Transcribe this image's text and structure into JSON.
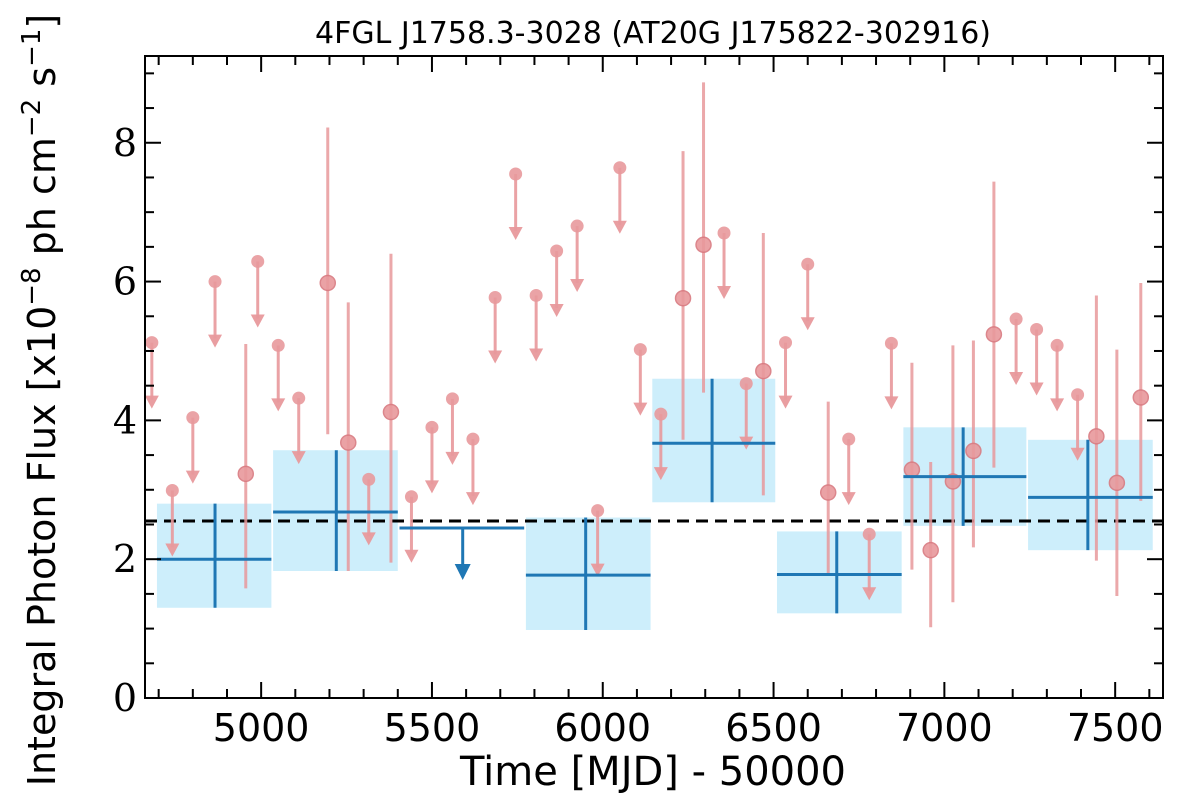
{
  "chart_data": {
    "type": "scatter",
    "title": "4FGL J1758.3-3028 (AT20G J175822-302916)",
    "xlabel": "Time [MJD] - 50000",
    "ylabel": "Integral Photon Flux [x10^-8 ph cm^-2 s^-1]",
    "xlim": [
      4660,
      7640
    ],
    "ylim": [
      0,
      9.25
    ],
    "xticks": [
      5000,
      5500,
      6000,
      6500,
      7000,
      7500
    ],
    "yticks": [
      0,
      2,
      4,
      6,
      8
    ],
    "reference_flux": 2.55,
    "colors": {
      "detections": "#e8999c",
      "bins": "#1f77b4",
      "bin_band": "#cdeefb",
      "reference_line": "#000000"
    },
    "binned": [
      {
        "x": 4865,
        "x_lo": 4695,
        "x_hi": 5030,
        "y": 2.0,
        "y_lo": 1.3,
        "y_hi": 2.8
      },
      {
        "x": 5220,
        "x_lo": 5035,
        "x_hi": 5400,
        "y": 2.68,
        "y_lo": 1.83,
        "y_hi": 3.57
      },
      {
        "x": 5950,
        "x_lo": 5775,
        "x_hi": 6140,
        "y": 1.77,
        "y_lo": 0.98,
        "y_hi": 2.6
      },
      {
        "x": 6320,
        "x_lo": 6145,
        "x_hi": 6505,
        "y": 3.67,
        "y_lo": 2.82,
        "y_hi": 4.6
      },
      {
        "x": 6685,
        "x_lo": 6510,
        "x_hi": 6875,
        "y": 1.78,
        "y_lo": 1.22,
        "y_hi": 2.4
      },
      {
        "x": 7055,
        "x_lo": 6880,
        "x_hi": 7240,
        "y": 3.19,
        "y_lo": 2.48,
        "y_hi": 3.9
      },
      {
        "x": 7420,
        "x_lo": 7245,
        "x_hi": 7610,
        "y": 2.89,
        "y_lo": 2.13,
        "y_hi": 3.72
      }
    ],
    "binned_upper_limits": [
      {
        "x": 5590,
        "x_lo": 5405,
        "x_hi": 5770,
        "y": 2.45
      }
    ],
    "detections": [
      {
        "x": 4955,
        "y": 3.23,
        "y_lo": 1.58,
        "y_hi": 5.1
      },
      {
        "x": 5195,
        "y": 5.98,
        "y_lo": 3.8,
        "y_hi": 8.22
      },
      {
        "x": 5255,
        "y": 3.68,
        "y_lo": 1.83,
        "y_hi": 5.7
      },
      {
        "x": 5380,
        "y": 4.12,
        "y_lo": 1.95,
        "y_hi": 6.4
      },
      {
        "x": 6235,
        "y": 5.76,
        "y_lo": 3.72,
        "y_hi": 7.88
      },
      {
        "x": 6295,
        "y": 6.53,
        "y_lo": 4.4,
        "y_hi": 8.87
      },
      {
        "x": 6470,
        "y": 4.71,
        "y_lo": 2.92,
        "y_hi": 6.7
      },
      {
        "x": 6660,
        "y": 2.96,
        "y_lo": 1.8,
        "y_hi": 4.27
      },
      {
        "x": 6905,
        "y": 3.29,
        "y_lo": 1.85,
        "y_hi": 4.83
      },
      {
        "x": 6960,
        "y": 2.13,
        "y_lo": 1.02,
        "y_hi": 3.4
      },
      {
        "x": 7025,
        "y": 3.12,
        "y_lo": 1.38,
        "y_hi": 5.08
      },
      {
        "x": 7085,
        "y": 3.56,
        "y_lo": 2.17,
        "y_hi": 5.15
      },
      {
        "x": 7145,
        "y": 5.24,
        "y_lo": 3.32,
        "y_hi": 7.44
      },
      {
        "x": 7445,
        "y": 3.77,
        "y_lo": 1.98,
        "y_hi": 5.8
      },
      {
        "x": 7505,
        "y": 3.1,
        "y_lo": 1.47,
        "y_hi": 5.02
      },
      {
        "x": 7575,
        "y": 4.33,
        "y_lo": 2.84,
        "y_hi": 5.98
      }
    ],
    "upper_limits": [
      {
        "x": 4680,
        "y": 5.12
      },
      {
        "x": 4740,
        "y": 2.99
      },
      {
        "x": 4800,
        "y": 4.04
      },
      {
        "x": 4865,
        "y": 6.0
      },
      {
        "x": 4990,
        "y": 6.29
      },
      {
        "x": 5050,
        "y": 5.08
      },
      {
        "x": 5110,
        "y": 4.32
      },
      {
        "x": 5315,
        "y": 3.15
      },
      {
        "x": 5440,
        "y": 2.9
      },
      {
        "x": 5500,
        "y": 3.9
      },
      {
        "x": 5560,
        "y": 4.31
      },
      {
        "x": 5620,
        "y": 3.73
      },
      {
        "x": 5685,
        "y": 5.77
      },
      {
        "x": 5745,
        "y": 7.55
      },
      {
        "x": 5805,
        "y": 5.8
      },
      {
        "x": 5865,
        "y": 6.44
      },
      {
        "x": 5925,
        "y": 6.8
      },
      {
        "x": 5985,
        "y": 2.7
      },
      {
        "x": 6050,
        "y": 7.64
      },
      {
        "x": 6110,
        "y": 5.02
      },
      {
        "x": 6170,
        "y": 4.09
      },
      {
        "x": 6355,
        "y": 6.7
      },
      {
        "x": 6420,
        "y": 4.53
      },
      {
        "x": 6535,
        "y": 5.12
      },
      {
        "x": 6600,
        "y": 6.25
      },
      {
        "x": 6720,
        "y": 3.73
      },
      {
        "x": 6780,
        "y": 2.36
      },
      {
        "x": 6845,
        "y": 5.11
      },
      {
        "x": 7210,
        "y": 5.46
      },
      {
        "x": 7270,
        "y": 5.31
      },
      {
        "x": 7330,
        "y": 5.08
      },
      {
        "x": 7390,
        "y": 4.37
      }
    ]
  }
}
